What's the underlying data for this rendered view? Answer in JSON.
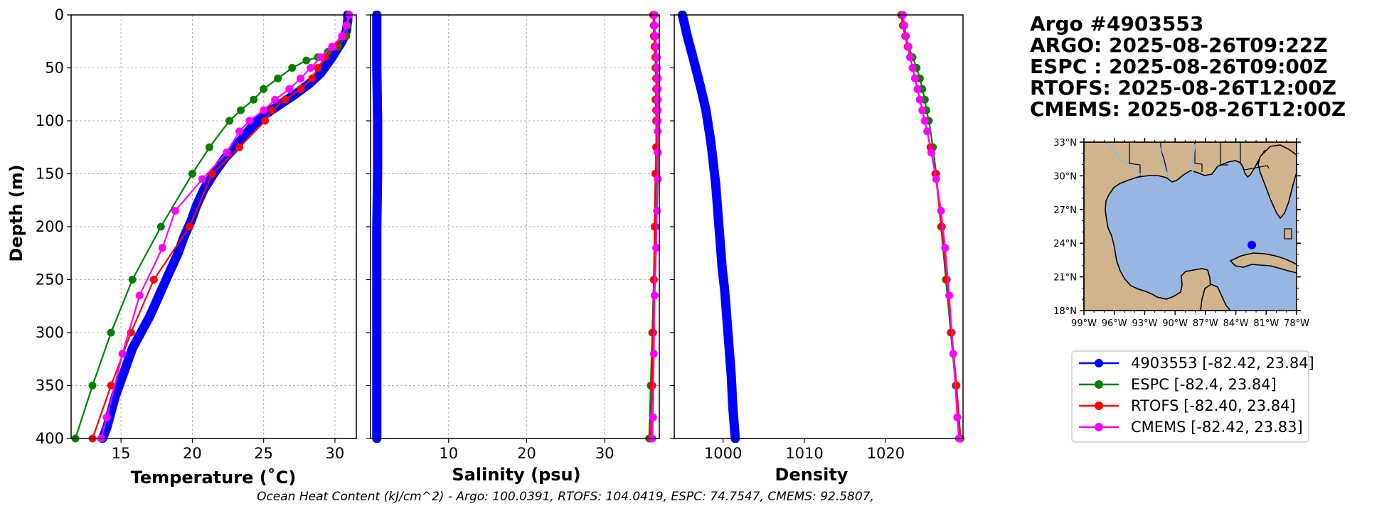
{
  "chart_data": [
    {
      "id": "temperature",
      "type": "line",
      "xlabel": "Temperature (˚C)",
      "ylabel": "Depth (m)",
      "xlim": [
        11.5,
        31.5
      ],
      "ylim": [
        400,
        0
      ],
      "xticks": [
        15,
        20,
        25,
        30
      ],
      "xtick_labels": [
        "15",
        "20",
        "25",
        "30"
      ],
      "yticks": [
        0,
        50,
        100,
        150,
        200,
        250,
        300,
        350,
        400
      ],
      "ytick_labels": [
        "0",
        "50",
        "100",
        "150",
        "200",
        "250",
        "300",
        "350",
        "400"
      ],
      "grid": true,
      "series": [
        {
          "name": "4903553",
          "color": "#0000ff",
          "style": "thick",
          "x": [
            30.9,
            30.9,
            30.8,
            30.5,
            29.8,
            29.0,
            28.2,
            27.2,
            26.1,
            25.0,
            24.2,
            23.6,
            23.0,
            22.3,
            21.5,
            20.8,
            20.3,
            19.9,
            19.4,
            19.0,
            18.5,
            18.0,
            17.5,
            17.0,
            16.4,
            15.8,
            15.4,
            15.0,
            14.6,
            14.3,
            14.0,
            13.7
          ],
          "y": [
            0,
            5,
            15,
            25,
            40,
            55,
            65,
            75,
            85,
            95,
            105,
            115,
            125,
            135,
            150,
            165,
            180,
            195,
            210,
            225,
            240,
            255,
            270,
            285,
            300,
            315,
            330,
            345,
            360,
            375,
            390,
            400
          ]
        },
        {
          "name": "ESPC",
          "color": "#008000",
          "style": "markers",
          "x": [
            31.0,
            30.9,
            30.8,
            30.2,
            29.5,
            28.8,
            28.0,
            27.0,
            26.0,
            25.0,
            24.3,
            23.4,
            22.6,
            21.2,
            20.0,
            17.8,
            15.8,
            14.3,
            13.0,
            11.8
          ],
          "y": [
            0,
            10,
            20,
            30,
            35,
            40,
            43,
            50,
            60,
            70,
            80,
            90,
            100,
            125,
            150,
            200,
            250,
            300,
            350,
            400
          ]
        },
        {
          "name": "RTOFS",
          "color": "#ff0000",
          "style": "markers",
          "x": [
            31.0,
            30.8,
            30.6,
            30.0,
            29.3,
            28.8,
            28.4,
            27.6,
            26.5,
            25.6,
            25.1,
            23.3,
            21.4,
            19.8,
            17.3,
            15.7,
            14.3,
            13.0
          ],
          "y": [
            0,
            10,
            20,
            30,
            40,
            50,
            60,
            70,
            80,
            90,
            100,
            125,
            150,
            200,
            250,
            300,
            350,
            400
          ]
        },
        {
          "name": "CMEMS",
          "color": "#ff00ff",
          "style": "markers",
          "x": [
            31.0,
            30.8,
            30.5,
            29.8,
            29.0,
            28.3,
            27.6,
            26.8,
            25.8,
            25.0,
            24.0,
            23.3,
            22.4,
            20.7,
            18.8,
            17.9,
            16.3,
            15.1,
            14.0,
            13.6
          ],
          "y": [
            0,
            10,
            20,
            30,
            40,
            50,
            60,
            70,
            80,
            90,
            100,
            110,
            130,
            155,
            185,
            220,
            265,
            320,
            380,
            400
          ]
        }
      ]
    },
    {
      "id": "salinity",
      "type": "line",
      "xlabel": "Salinity (psu)",
      "ylabel": "",
      "xlim": [
        0,
        37
      ],
      "ylim": [
        400,
        0
      ],
      "xticks": [
        10,
        20,
        30
      ],
      "xtick_labels": [
        "10",
        "20",
        "30"
      ],
      "yticks": [
        0,
        50,
        100,
        150,
        200,
        250,
        300,
        350,
        400
      ],
      "grid": true,
      "series": [
        {
          "name": "4903553",
          "color": "#0000ff",
          "style": "thick",
          "x": [
            0.8,
            0.8,
            0.9,
            0.9,
            0.8,
            0.8,
            0.8,
            0.8
          ],
          "y": [
            0,
            50,
            100,
            150,
            200,
            250,
            300,
            400
          ]
        },
        {
          "name": "ESPC",
          "color": "#008000",
          "style": "markers",
          "x": [
            36.3,
            36.3,
            36.4,
            36.4,
            36.5,
            36.5,
            36.6,
            36.6,
            36.5,
            36.6,
            36.6,
            36.6,
            36.6,
            36.5,
            36.3,
            36.1,
            35.9,
            35.7
          ],
          "y": [
            0,
            10,
            20,
            30,
            40,
            50,
            60,
            70,
            80,
            90,
            100,
            125,
            150,
            200,
            250,
            300,
            350,
            400
          ]
        },
        {
          "name": "RTOFS",
          "color": "#ff0000",
          "style": "markers",
          "x": [
            36.2,
            36.3,
            36.3,
            36.4,
            36.5,
            36.6,
            36.6,
            36.6,
            36.6,
            36.6,
            36.6,
            36.6,
            36.5,
            36.4,
            36.3,
            36.2,
            36.1,
            35.9
          ],
          "y": [
            0,
            10,
            20,
            30,
            40,
            50,
            60,
            70,
            80,
            90,
            100,
            125,
            150,
            200,
            250,
            300,
            350,
            400
          ]
        },
        {
          "name": "CMEMS",
          "color": "#ff00ff",
          "style": "markers",
          "x": [
            36.4,
            36.4,
            36.5,
            36.6,
            36.7,
            36.7,
            36.8,
            36.8,
            36.8,
            36.8,
            36.8,
            36.8,
            36.8,
            36.8,
            36.7,
            36.6,
            36.4,
            36.3,
            36.2,
            36.1
          ],
          "y": [
            0,
            10,
            20,
            30,
            40,
            50,
            60,
            70,
            80,
            90,
            100,
            110,
            130,
            155,
            185,
            220,
            265,
            320,
            380,
            400
          ]
        }
      ]
    },
    {
      "id": "density",
      "type": "line",
      "xlabel": "Density",
      "ylabel": "",
      "xlim": [
        994,
        1029.5
      ],
      "ylim": [
        400,
        0
      ],
      "xticks": [
        1000,
        1010,
        1020
      ],
      "xtick_labels": [
        "1000",
        "1010",
        "1020"
      ],
      "yticks": [
        0,
        50,
        100,
        150,
        200,
        250,
        300,
        350,
        400
      ],
      "grid": false,
      "series": [
        {
          "name": "4903553",
          "color": "#0000ff",
          "style": "thick",
          "x": [
            995.0,
            995.3,
            995.6,
            996.3,
            997.3,
            997.9,
            998.2,
            998.5,
            998.8,
            999.1,
            999.3,
            999.5,
            999.7,
            999.9,
            1000.2,
            1000.4,
            1000.6,
            1000.8,
            1001.0,
            1001.2,
            1001.5
          ],
          "y": [
            0,
            10,
            20,
            40,
            70,
            90,
            105,
            120,
            140,
            160,
            180,
            200,
            220,
            240,
            260,
            280,
            300,
            320,
            340,
            370,
            400
          ]
        },
        {
          "name": "ESPC",
          "color": "#008000",
          "style": "markers",
          "x": [
            1021.9,
            1022.1,
            1022.4,
            1022.8,
            1023.3,
            1023.8,
            1024.2,
            1024.5,
            1024.8,
            1025.0,
            1025.3,
            1025.8,
            1026.2,
            1026.8,
            1027.4,
            1028.0,
            1028.6,
            1029.1
          ],
          "y": [
            0,
            10,
            20,
            30,
            40,
            50,
            60,
            70,
            80,
            90,
            100,
            125,
            150,
            200,
            250,
            300,
            350,
            400
          ]
        },
        {
          "name": "RTOFS",
          "color": "#ff0000",
          "style": "markers",
          "x": [
            1022.0,
            1022.2,
            1022.4,
            1022.7,
            1023.0,
            1023.3,
            1023.6,
            1023.9,
            1024.2,
            1024.5,
            1024.8,
            1025.5,
            1026.1,
            1026.9,
            1027.5,
            1028.1,
            1028.7,
            1029.2
          ],
          "y": [
            0,
            10,
            20,
            30,
            40,
            50,
            60,
            70,
            80,
            90,
            100,
            125,
            150,
            200,
            250,
            300,
            350,
            400
          ]
        },
        {
          "name": "CMEMS",
          "color": "#ff00ff",
          "style": "markers",
          "x": [
            1022.1,
            1022.3,
            1022.5,
            1022.8,
            1023.0,
            1023.3,
            1023.6,
            1023.9,
            1024.2,
            1024.5,
            1024.8,
            1025.1,
            1025.6,
            1026.2,
            1026.8,
            1027.3,
            1027.8,
            1028.3,
            1028.8,
            1029.0
          ],
          "y": [
            0,
            10,
            20,
            30,
            40,
            50,
            60,
            70,
            80,
            90,
            100,
            110,
            130,
            155,
            185,
            220,
            265,
            320,
            380,
            400
          ]
        }
      ]
    }
  ],
  "info": {
    "lines": [
      "Argo #4903553",
      "ARGO: 2025-08-26T09:22Z",
      "ESPC : 2025-08-26T09:00Z",
      "RTOFS: 2025-08-26T12:00Z",
      "CMEMS: 2025-08-26T12:00Z"
    ]
  },
  "map": {
    "lon_range": [
      -99,
      -78
    ],
    "lat_range": [
      18,
      33
    ],
    "lat_labels": [
      "33°N",
      "30°N",
      "27°N",
      "24°N",
      "21°N",
      "18°N"
    ],
    "lon_labels": [
      "99°W",
      "96°W",
      "93°W",
      "90°W",
      "87°W",
      "84°W",
      "81°W",
      "78°W"
    ],
    "float_position": {
      "lon": -82.42,
      "lat": 23.84
    },
    "colors": {
      "land": "#d2b48c",
      "water": "#97b6e1",
      "float": "#0000ff"
    }
  },
  "legend": {
    "entries": [
      {
        "label": "4903553 [-82.42, 23.84]",
        "color": "#0000ff"
      },
      {
        "label": "ESPC [-82.4, 23.84]",
        "color": "#008000"
      },
      {
        "label": "RTOFS [-82.40, 23.84]",
        "color": "#ff0000"
      },
      {
        "label": "CMEMS [-82.42, 23.83]",
        "color": "#ff00ff"
      }
    ]
  },
  "footer": {
    "ohc_text": "Ocean Heat Content (kJ/cm^2) - Argo: 100.0391,  RTOFS: 104.0419,  ESPC: 74.7547,  CMEMS: 92.5807,"
  }
}
